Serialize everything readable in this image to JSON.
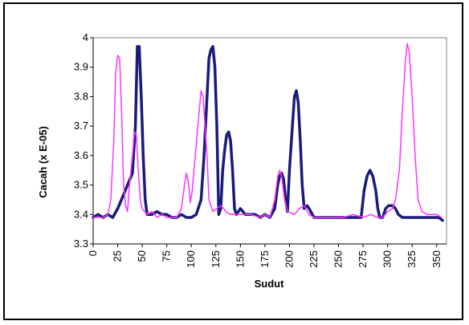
{
  "chart_data": {
    "type": "line",
    "title": "",
    "xlabel": "Sudut",
    "ylabel": "Cacah (x E-05)",
    "xlim": [
      0,
      360
    ],
    "ylim": [
      3.3,
      4.0
    ],
    "x_ticks": [
      0,
      25,
      50,
      75,
      100,
      125,
      150,
      175,
      200,
      225,
      250,
      275,
      300,
      325,
      350
    ],
    "y_ticks": [
      3.3,
      3.4,
      3.5,
      3.6,
      3.7,
      3.8,
      3.9,
      4.0
    ],
    "y_tick_labels": [
      "3.3",
      "3.4",
      "3.5",
      "3.6",
      "3.7",
      "3.8",
      "3.9",
      "4"
    ],
    "grid": false,
    "legend": "none",
    "series": [
      {
        "color": "#1a1a7a",
        "line_width": 3.5,
        "points": [
          [
            0,
            3.39
          ],
          [
            5,
            3.4
          ],
          [
            10,
            3.39
          ],
          [
            15,
            3.4
          ],
          [
            20,
            3.39
          ],
          [
            25,
            3.42
          ],
          [
            30,
            3.46
          ],
          [
            35,
            3.5
          ],
          [
            40,
            3.54
          ],
          [
            43,
            3.7
          ],
          [
            45,
            3.97
          ],
          [
            47,
            3.97
          ],
          [
            49,
            3.8
          ],
          [
            51,
            3.6
          ],
          [
            53,
            3.45
          ],
          [
            55,
            3.4
          ],
          [
            60,
            3.4
          ],
          [
            65,
            3.41
          ],
          [
            70,
            3.4
          ],
          [
            75,
            3.4
          ],
          [
            80,
            3.39
          ],
          [
            85,
            3.39
          ],
          [
            90,
            3.4
          ],
          [
            95,
            3.39
          ],
          [
            100,
            3.39
          ],
          [
            105,
            3.4
          ],
          [
            110,
            3.45
          ],
          [
            113,
            3.6
          ],
          [
            116,
            3.8
          ],
          [
            118,
            3.93
          ],
          [
            120,
            3.96
          ],
          [
            122,
            3.97
          ],
          [
            124,
            3.9
          ],
          [
            126,
            3.7
          ],
          [
            128,
            3.4
          ],
          [
            130,
            3.42
          ],
          [
            132,
            3.55
          ],
          [
            134,
            3.62
          ],
          [
            136,
            3.67
          ],
          [
            138,
            3.68
          ],
          [
            140,
            3.65
          ],
          [
            142,
            3.55
          ],
          [
            144,
            3.42
          ],
          [
            146,
            3.4
          ],
          [
            150,
            3.42
          ],
          [
            155,
            3.4
          ],
          [
            160,
            3.4
          ],
          [
            165,
            3.4
          ],
          [
            170,
            3.39
          ],
          [
            175,
            3.4
          ],
          [
            180,
            3.39
          ],
          [
            185,
            3.42
          ],
          [
            188,
            3.5
          ],
          [
            190,
            3.53
          ],
          [
            192,
            3.54
          ],
          [
            194,
            3.52
          ],
          [
            196,
            3.45
          ],
          [
            198,
            3.41
          ],
          [
            200,
            3.55
          ],
          [
            203,
            3.7
          ],
          [
            205,
            3.8
          ],
          [
            207,
            3.82
          ],
          [
            209,
            3.78
          ],
          [
            211,
            3.65
          ],
          [
            213,
            3.5
          ],
          [
            215,
            3.42
          ],
          [
            218,
            3.43
          ],
          [
            220,
            3.42
          ],
          [
            225,
            3.39
          ],
          [
            230,
            3.39
          ],
          [
            240,
            3.39
          ],
          [
            250,
            3.39
          ],
          [
            260,
            3.39
          ],
          [
            270,
            3.39
          ],
          [
            273,
            3.39
          ],
          [
            276,
            3.48
          ],
          [
            279,
            3.53
          ],
          [
            282,
            3.55
          ],
          [
            285,
            3.53
          ],
          [
            288,
            3.48
          ],
          [
            290,
            3.42
          ],
          [
            292,
            3.39
          ],
          [
            295,
            3.39
          ],
          [
            298,
            3.42
          ],
          [
            301,
            3.43
          ],
          [
            305,
            3.43
          ],
          [
            308,
            3.42
          ],
          [
            311,
            3.4
          ],
          [
            315,
            3.39
          ],
          [
            325,
            3.39
          ],
          [
            335,
            3.39
          ],
          [
            345,
            3.39
          ],
          [
            352,
            3.39
          ],
          [
            356,
            3.38
          ]
        ]
      },
      {
        "color": "#ff33ff",
        "line_width": 1.5,
        "points": [
          [
            0,
            3.39
          ],
          [
            5,
            3.39
          ],
          [
            10,
            3.39
          ],
          [
            15,
            3.4
          ],
          [
            18,
            3.45
          ],
          [
            21,
            3.65
          ],
          [
            23,
            3.88
          ],
          [
            25,
            3.94
          ],
          [
            27,
            3.93
          ],
          [
            29,
            3.75
          ],
          [
            31,
            3.5
          ],
          [
            33,
            3.43
          ],
          [
            35,
            3.41
          ],
          [
            37,
            3.5
          ],
          [
            40,
            3.6
          ],
          [
            42,
            3.68
          ],
          [
            44,
            3.67
          ],
          [
            46,
            3.55
          ],
          [
            48,
            3.45
          ],
          [
            50,
            3.42
          ],
          [
            55,
            3.4
          ],
          [
            60,
            3.41
          ],
          [
            65,
            3.39
          ],
          [
            70,
            3.4
          ],
          [
            75,
            3.39
          ],
          [
            80,
            3.39
          ],
          [
            85,
            3.39
          ],
          [
            90,
            3.42
          ],
          [
            93,
            3.5
          ],
          [
            95,
            3.54
          ],
          [
            97,
            3.51
          ],
          [
            99,
            3.44
          ],
          [
            101,
            3.48
          ],
          [
            104,
            3.6
          ],
          [
            108,
            3.75
          ],
          [
            110,
            3.82
          ],
          [
            112,
            3.8
          ],
          [
            114,
            3.7
          ],
          [
            116,
            3.6
          ],
          [
            118,
            3.45
          ],
          [
            122,
            3.41
          ],
          [
            126,
            3.42
          ],
          [
            130,
            3.43
          ],
          [
            133,
            3.42
          ],
          [
            135,
            3.41
          ],
          [
            140,
            3.4
          ],
          [
            150,
            3.4
          ],
          [
            160,
            3.4
          ],
          [
            170,
            3.39
          ],
          [
            175,
            3.4
          ],
          [
            180,
            3.39
          ],
          [
            185,
            3.45
          ],
          [
            188,
            3.53
          ],
          [
            190,
            3.55
          ],
          [
            192,
            3.53
          ],
          [
            195,
            3.45
          ],
          [
            198,
            3.41
          ],
          [
            205,
            3.4
          ],
          [
            210,
            3.42
          ],
          [
            215,
            3.43
          ],
          [
            220,
            3.4
          ],
          [
            225,
            3.39
          ],
          [
            235,
            3.39
          ],
          [
            245,
            3.39
          ],
          [
            255,
            3.39
          ],
          [
            265,
            3.4
          ],
          [
            275,
            3.39
          ],
          [
            283,
            3.4
          ],
          [
            290,
            3.39
          ],
          [
            295,
            3.39
          ],
          [
            300,
            3.41
          ],
          [
            305,
            3.42
          ],
          [
            308,
            3.45
          ],
          [
            312,
            3.55
          ],
          [
            315,
            3.75
          ],
          [
            318,
            3.92
          ],
          [
            320,
            3.98
          ],
          [
            322,
            3.95
          ],
          [
            325,
            3.8
          ],
          [
            328,
            3.6
          ],
          [
            331,
            3.45
          ],
          [
            335,
            3.41
          ],
          [
            340,
            3.4
          ],
          [
            345,
            3.4
          ],
          [
            350,
            3.4
          ],
          [
            355,
            3.39
          ]
        ]
      }
    ]
  }
}
